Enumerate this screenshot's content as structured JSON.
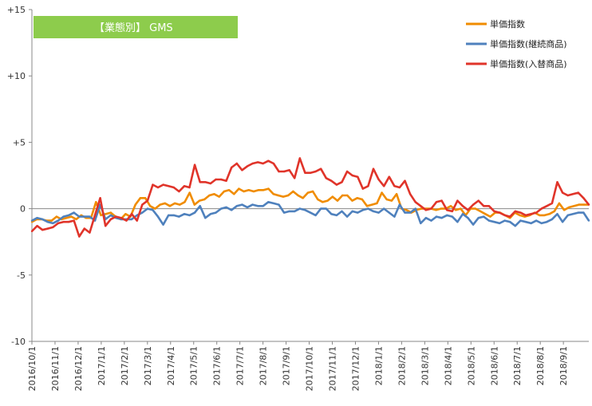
{
  "chart_data": {
    "type": "line",
    "title": "【業態別】 GMS",
    "title_bg": "#8dcc4c",
    "ylim": [
      -10,
      15
    ],
    "yticks": [
      -10,
      -5,
      0,
      5,
      10,
      15
    ],
    "ytick_labels": [
      "-10",
      "-5",
      "0",
      "+5",
      "+10",
      "+15"
    ],
    "xlabel": "",
    "ylabel": "",
    "grid": "horizontal-zero-line-only",
    "legend_position": "top-right",
    "x_tick_labels": [
      "2016/10/1",
      "2016/11/1",
      "2016/12/1",
      "2017/1/1",
      "2017/2/1",
      "2017/3/1",
      "2017/4/1",
      "2017/5/1",
      "2017/6/1",
      "2017/7/1",
      "2017/8/1",
      "2017/9/1",
      "2017/10/1",
      "2017/11/1",
      "2017/12/1",
      "2018/1/1",
      "2018/2/1",
      "2018/3/1",
      "2018/4/1",
      "2018/5/1",
      "2018/6/1",
      "2018/7/1",
      "2018/8/1",
      "2018/9/1"
    ],
    "series": [
      {
        "name": "単価指数",
        "color": "#f08c00",
        "values": [
          -1.0,
          -0.8,
          -0.8,
          -0.9,
          -0.9,
          -0.6,
          -0.8,
          -0.7,
          -0.6,
          -0.8,
          -0.5,
          -0.7,
          -0.7,
          0.5,
          -0.5,
          -0.4,
          -0.3,
          -0.6,
          -0.8,
          -0.4,
          -0.6,
          0.3,
          0.8,
          0.8,
          0.2,
          0.0,
          0.3,
          0.4,
          0.2,
          0.4,
          0.3,
          0.5,
          1.2,
          0.3,
          0.6,
          0.7,
          1.0,
          1.1,
          0.9,
          1.3,
          1.4,
          1.1,
          1.5,
          1.3,
          1.4,
          1.3,
          1.4,
          1.4,
          1.5,
          1.1,
          1.0,
          0.9,
          1.0,
          1.3,
          1.0,
          0.8,
          1.2,
          1.3,
          0.7,
          0.5,
          0.6,
          0.9,
          0.6,
          1.0,
          1.0,
          0.6,
          0.8,
          0.7,
          0.2,
          0.3,
          0.4,
          1.2,
          0.7,
          0.6,
          1.1,
          0.0,
          -0.1,
          -0.3,
          -0.1,
          0.0,
          0.0,
          0.0,
          -0.1,
          0.0,
          0.0,
          0.2,
          -0.1,
          0.0,
          -0.5,
          0.0,
          0.0,
          -0.2,
          -0.4,
          -0.6,
          -0.3,
          -0.3,
          -0.5,
          -0.7,
          -0.3,
          -0.5,
          -0.6,
          -0.5,
          -0.3,
          -0.5,
          -0.5,
          -0.4,
          -0.2,
          0.4,
          -0.1,
          0.1,
          0.2,
          0.3,
          0.3,
          0.3
        ]
      },
      {
        "name": "単価指数(継続商品)",
        "color": "#4f81bd",
        "values": [
          -0.9,
          -0.7,
          -0.8,
          -1.0,
          -1.1,
          -0.9,
          -0.6,
          -0.5,
          -0.3,
          -0.6,
          -0.6,
          -0.6,
          -0.9,
          0.3,
          -0.8,
          -0.5,
          -0.7,
          -0.8,
          -0.8,
          -0.8,
          -0.5,
          -0.3,
          0.0,
          -0.1,
          -0.6,
          -1.2,
          -0.5,
          -0.5,
          -0.6,
          -0.4,
          -0.5,
          -0.3,
          0.2,
          -0.7,
          -0.4,
          -0.3,
          0.0,
          0.1,
          -0.1,
          0.2,
          0.3,
          0.1,
          0.3,
          0.2,
          0.2,
          0.5,
          0.4,
          0.3,
          -0.3,
          -0.2,
          -0.2,
          0.0,
          -0.1,
          -0.3,
          -0.5,
          0.0,
          0.0,
          -0.4,
          -0.5,
          -0.2,
          -0.6,
          -0.2,
          -0.3,
          -0.1,
          0.0,
          -0.2,
          -0.3,
          0.0,
          -0.3,
          -0.6,
          0.3,
          -0.3,
          -0.3,
          0.0,
          -1.1,
          -0.7,
          -0.9,
          -0.6,
          -0.7,
          -0.5,
          -0.6,
          -1.0,
          -0.4,
          -0.7,
          -1.2,
          -0.7,
          -0.6,
          -0.9,
          -1.0,
          -1.1,
          -0.9,
          -1.0,
          -1.3,
          -0.9,
          -1.0,
          -1.1,
          -0.9,
          -1.1,
          -1.0,
          -0.8,
          -0.4,
          -1.0,
          -0.5,
          -0.4,
          -0.3,
          -0.3,
          -0.9
        ]
      },
      {
        "name": "単価指数(入替商品)",
        "color": "#e0342a",
        "values": [
          -1.7,
          -1.3,
          -1.6,
          -1.5,
          -1.4,
          -1.1,
          -1.0,
          -1.0,
          -0.9,
          -2.1,
          -1.5,
          -1.8,
          -0.5,
          0.8,
          -1.3,
          -0.8,
          -0.6,
          -0.7,
          -0.9,
          -0.4,
          -0.9,
          0.3,
          0.6,
          1.8,
          1.6,
          1.8,
          1.7,
          1.6,
          1.3,
          1.7,
          1.6,
          3.3,
          2.0,
          2.0,
          1.9,
          2.2,
          2.2,
          2.1,
          3.1,
          3.4,
          2.9,
          3.2,
          3.4,
          3.5,
          3.4,
          3.6,
          3.4,
          2.8,
          2.8,
          2.9,
          2.3,
          3.8,
          2.7,
          2.7,
          2.8,
          3.0,
          2.3,
          2.1,
          1.8,
          2.0,
          2.8,
          2.5,
          2.4,
          1.5,
          1.7,
          3.0,
          2.2,
          1.7,
          2.4,
          1.7,
          1.6,
          2.1,
          1.1,
          0.5,
          0.2,
          -0.1,
          0.0,
          0.5,
          0.6,
          -0.1,
          -0.2,
          0.6,
          0.2,
          -0.1,
          0.3,
          0.6,
          0.2,
          0.2,
          -0.2,
          -0.3,
          -0.5,
          -0.6,
          -0.2,
          -0.3,
          -0.5,
          -0.4,
          -0.3,
          0.0,
          0.2,
          0.4,
          2.0,
          1.2,
          1.0,
          1.1,
          1.2,
          0.8,
          0.3
        ]
      }
    ]
  }
}
